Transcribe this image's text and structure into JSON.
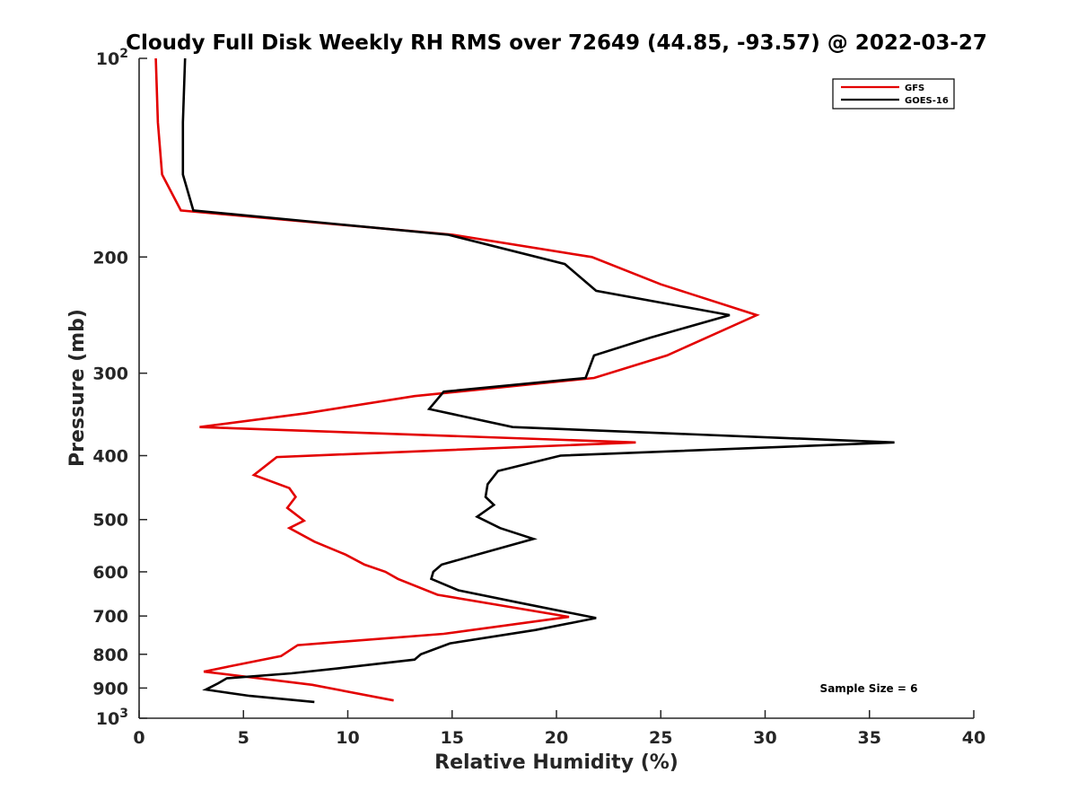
{
  "chart_data": {
    "type": "line",
    "title": "Cloudy Full Disk Weekly RH RMS over 72649 (44.85, -93.57) @ 2022-03-27",
    "xlabel": "Relative Humidity (%)",
    "ylabel": "Pressure (mb)",
    "xlim": [
      0,
      40
    ],
    "ylim": [
      1000,
      100
    ],
    "yscale": "log",
    "x_ticks": [
      "0",
      "5",
      "10",
      "15",
      "20",
      "25",
      "30",
      "35",
      "40"
    ],
    "y_ticks": [
      {
        "value": 100,
        "label": "10",
        "sup": "2"
      },
      {
        "value": 200,
        "label": "200",
        "sup": ""
      },
      {
        "value": 300,
        "label": "300",
        "sup": ""
      },
      {
        "value": 400,
        "label": "400",
        "sup": ""
      },
      {
        "value": 500,
        "label": "500",
        "sup": ""
      },
      {
        "value": 600,
        "label": "600",
        "sup": ""
      },
      {
        "value": 700,
        "label": "700",
        "sup": ""
      },
      {
        "value": 800,
        "label": "800",
        "sup": ""
      },
      {
        "value": 900,
        "label": "900",
        "sup": ""
      },
      {
        "value": 1000,
        "label": "10",
        "sup": "3"
      }
    ],
    "legend_position": "top-right",
    "annotation": "Sample Size = 6",
    "series": [
      {
        "name": "GFS",
        "color": "#e30000",
        "points": [
          [
            0.8,
            100
          ],
          [
            0.9,
            125
          ],
          [
            1.1,
            150
          ],
          [
            2.0,
            170
          ],
          [
            15.0,
            185
          ],
          [
            21.7,
            200
          ],
          [
            25.0,
            220
          ],
          [
            29.6,
            245
          ],
          [
            25.3,
            282
          ],
          [
            21.8,
            305
          ],
          [
            13.2,
            325
          ],
          [
            8.0,
            345
          ],
          [
            2.9,
            362
          ],
          [
            23.8,
            382
          ],
          [
            6.6,
            402
          ],
          [
            5.5,
            428
          ],
          [
            7.2,
            448
          ],
          [
            7.5,
            462
          ],
          [
            7.1,
            480
          ],
          [
            7.9,
            502
          ],
          [
            7.2,
            515
          ],
          [
            8.4,
            540
          ],
          [
            9.9,
            565
          ],
          [
            10.8,
            585
          ],
          [
            11.8,
            600
          ],
          [
            12.4,
            615
          ],
          [
            14.3,
            650
          ],
          [
            20.6,
            702
          ],
          [
            14.6,
            745
          ],
          [
            7.6,
            775
          ],
          [
            6.8,
            805
          ],
          [
            4.3,
            835
          ],
          [
            3.1,
            850
          ],
          [
            8.3,
            890
          ],
          [
            12.2,
            940
          ]
        ]
      },
      {
        "name": "GOES-16",
        "color": "#000000",
        "points": [
          [
            2.2,
            100
          ],
          [
            2.1,
            125
          ],
          [
            2.1,
            150
          ],
          [
            2.6,
            170
          ],
          [
            14.8,
            185
          ],
          [
            20.4,
            205
          ],
          [
            21.9,
            225
          ],
          [
            28.3,
            245
          ],
          [
            24.5,
            265
          ],
          [
            21.8,
            282
          ],
          [
            21.4,
            305
          ],
          [
            14.6,
            320
          ],
          [
            13.9,
            340
          ],
          [
            17.9,
            362
          ],
          [
            36.2,
            382
          ],
          [
            20.2,
            400
          ],
          [
            17.2,
            422
          ],
          [
            16.7,
            442
          ],
          [
            16.6,
            462
          ],
          [
            17.0,
            475
          ],
          [
            16.2,
            495
          ],
          [
            17.3,
            515
          ],
          [
            18.9,
            535
          ],
          [
            16.2,
            565
          ],
          [
            14.5,
            585
          ],
          [
            14.1,
            600
          ],
          [
            14.0,
            615
          ],
          [
            15.3,
            640
          ],
          [
            18.4,
            670
          ],
          [
            21.9,
            705
          ],
          [
            19.0,
            735
          ],
          [
            14.9,
            770
          ],
          [
            13.5,
            800
          ],
          [
            13.2,
            815
          ],
          [
            9.6,
            840
          ],
          [
            7.3,
            855
          ],
          [
            4.2,
            870
          ],
          [
            3.8,
            885
          ],
          [
            3.2,
            905
          ],
          [
            5.3,
            925
          ],
          [
            8.4,
            945
          ]
        ]
      }
    ]
  }
}
